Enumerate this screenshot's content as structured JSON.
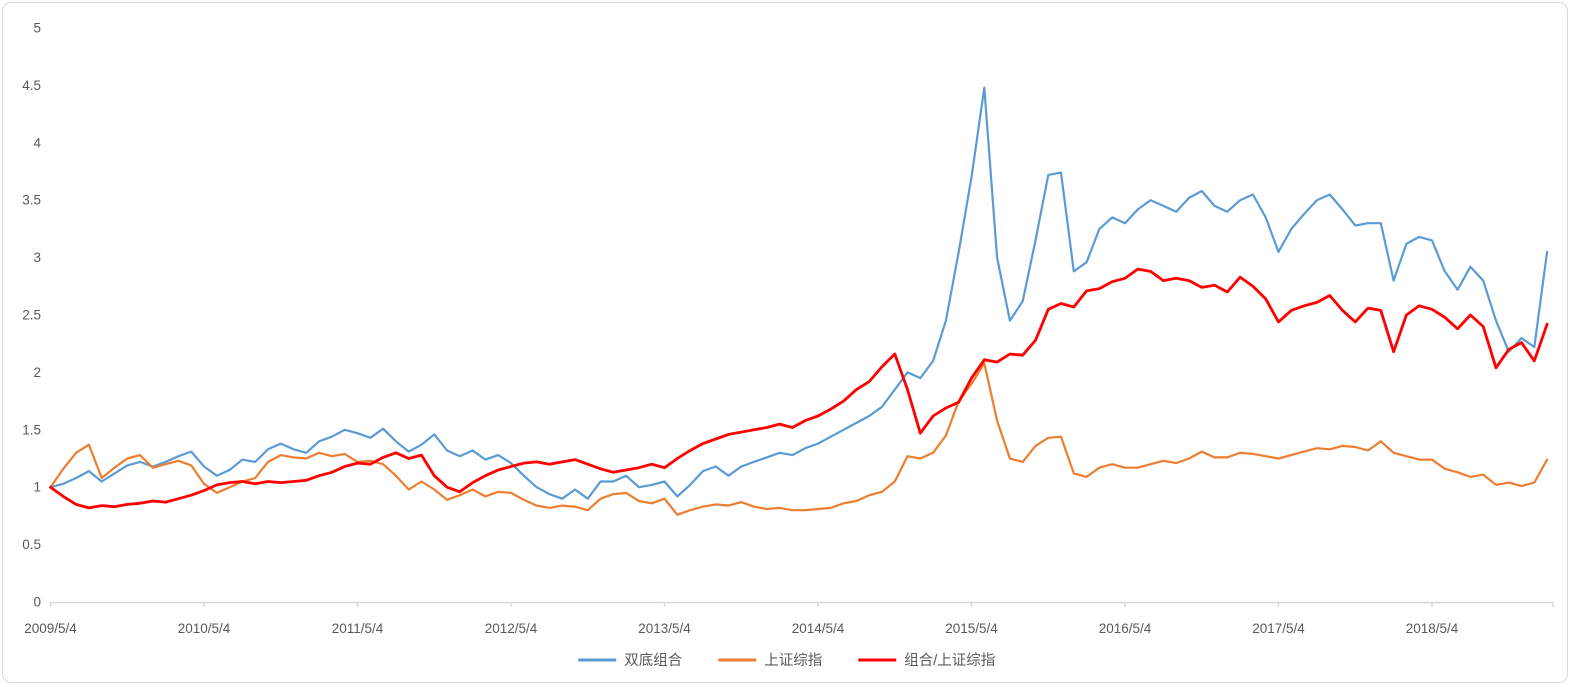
{
  "chart_data": {
    "type": "line",
    "title": "",
    "xlabel": "",
    "ylabel": "",
    "grid": false,
    "legend_position": "bottom-center",
    "ylim": [
      0,
      5
    ],
    "y_ticks": [
      0,
      0.5,
      1,
      1.5,
      2,
      2.5,
      3,
      3.5,
      4,
      4.5,
      5
    ],
    "x_unit": "month",
    "x_start": "2009/5/4",
    "x_tick_labels": [
      "2009/5/4",
      "2010/5/4",
      "2011/5/4",
      "2012/5/4",
      "2013/5/4",
      "2014/5/4",
      "2015/5/4",
      "2016/5/4",
      "2017/5/4",
      "2018/5/4"
    ],
    "series": [
      {
        "name": "双底组合",
        "color": "#5B9BD5",
        "line_width": 2.2,
        "values": [
          1.0,
          1.03,
          1.08,
          1.14,
          1.05,
          1.12,
          1.19,
          1.22,
          1.18,
          1.22,
          1.27,
          1.31,
          1.18,
          1.1,
          1.15,
          1.24,
          1.22,
          1.33,
          1.38,
          1.33,
          1.3,
          1.4,
          1.44,
          1.5,
          1.47,
          1.43,
          1.51,
          1.4,
          1.31,
          1.37,
          1.46,
          1.32,
          1.27,
          1.32,
          1.24,
          1.28,
          1.21,
          1.1,
          1.0,
          0.94,
          0.9,
          0.98,
          0.9,
          1.05,
          1.05,
          1.1,
          1.0,
          1.02,
          1.05,
          0.92,
          1.02,
          1.14,
          1.18,
          1.1,
          1.18,
          1.22,
          1.26,
          1.3,
          1.28,
          1.34,
          1.38,
          1.44,
          1.5,
          1.56,
          1.62,
          1.7,
          1.85,
          2.0,
          1.95,
          2.1,
          2.45,
          3.05,
          3.7,
          4.48,
          3.0,
          2.45,
          2.62,
          3.15,
          3.72,
          3.74,
          2.88,
          2.96,
          3.25,
          3.35,
          3.3,
          3.42,
          3.5,
          3.45,
          3.4,
          3.52,
          3.58,
          3.45,
          3.4,
          3.5,
          3.55,
          3.35,
          3.05,
          3.25,
          3.38,
          3.5,
          3.55,
          3.42,
          3.28,
          3.3,
          3.3,
          2.8,
          3.12,
          3.18,
          3.15,
          2.88,
          2.72,
          2.92,
          2.8,
          2.45,
          2.18,
          2.3,
          2.22,
          3.05
        ]
      },
      {
        "name": "上证综指",
        "color": "#ED7D31",
        "line_width": 2.2,
        "values": [
          1.0,
          1.16,
          1.3,
          1.37,
          1.08,
          1.17,
          1.25,
          1.28,
          1.17,
          1.2,
          1.23,
          1.19,
          1.03,
          0.95,
          1.0,
          1.05,
          1.08,
          1.22,
          1.28,
          1.26,
          1.25,
          1.3,
          1.27,
          1.29,
          1.22,
          1.23,
          1.2,
          1.1,
          0.98,
          1.05,
          0.98,
          0.89,
          0.93,
          0.98,
          0.92,
          0.96,
          0.95,
          0.89,
          0.84,
          0.82,
          0.84,
          0.83,
          0.8,
          0.9,
          0.94,
          0.95,
          0.88,
          0.86,
          0.9,
          0.76,
          0.8,
          0.83,
          0.85,
          0.84,
          0.87,
          0.83,
          0.81,
          0.82,
          0.8,
          0.8,
          0.81,
          0.82,
          0.86,
          0.88,
          0.93,
          0.96,
          1.05,
          1.27,
          1.25,
          1.3,
          1.45,
          1.75,
          1.9,
          2.08,
          1.58,
          1.25,
          1.22,
          1.36,
          1.43,
          1.44,
          1.12,
          1.09,
          1.17,
          1.2,
          1.17,
          1.17,
          1.2,
          1.23,
          1.21,
          1.25,
          1.31,
          1.26,
          1.26,
          1.3,
          1.29,
          1.27,
          1.25,
          1.28,
          1.31,
          1.34,
          1.33,
          1.36,
          1.35,
          1.32,
          1.4,
          1.3,
          1.27,
          1.24,
          1.24,
          1.16,
          1.13,
          1.09,
          1.11,
          1.02,
          1.04,
          1.01,
          1.04,
          1.24
        ]
      },
      {
        "name": "组合/上证综指",
        "color": "#FF0000",
        "line_width": 2.8,
        "values": [
          1.0,
          0.92,
          0.85,
          0.82,
          0.84,
          0.83,
          0.85,
          0.86,
          0.88,
          0.87,
          0.9,
          0.93,
          0.97,
          1.02,
          1.04,
          1.05,
          1.03,
          1.05,
          1.04,
          1.05,
          1.06,
          1.1,
          1.13,
          1.18,
          1.21,
          1.2,
          1.26,
          1.3,
          1.25,
          1.28,
          1.1,
          1.0,
          0.96,
          1.04,
          1.1,
          1.15,
          1.18,
          1.21,
          1.22,
          1.2,
          1.22,
          1.24,
          1.2,
          1.16,
          1.13,
          1.15,
          1.17,
          1.2,
          1.17,
          1.25,
          1.32,
          1.38,
          1.42,
          1.46,
          1.48,
          1.5,
          1.52,
          1.55,
          1.52,
          1.58,
          1.62,
          1.68,
          1.75,
          1.85,
          1.92,
          2.05,
          2.16,
          1.85,
          1.47,
          1.62,
          1.69,
          1.74,
          1.95,
          2.11,
          2.09,
          2.16,
          2.15,
          2.28,
          2.55,
          2.6,
          2.57,
          2.71,
          2.73,
          2.79,
          2.82,
          2.9,
          2.88,
          2.8,
          2.82,
          2.8,
          2.74,
          2.76,
          2.7,
          2.83,
          2.75,
          2.64,
          2.44,
          2.54,
          2.58,
          2.61,
          2.67,
          2.54,
          2.44,
          2.56,
          2.54,
          2.18,
          2.5,
          2.58,
          2.55,
          2.48,
          2.38,
          2.5,
          2.4,
          2.04,
          2.2,
          2.26,
          2.1,
          2.42
        ]
      }
    ]
  },
  "style_colors": {
    "axis_label": "#595959",
    "legend_text": "#595959",
    "axis_line": "#d9d9d9",
    "card_border": "#d8d8d8",
    "background": "#ffffff"
  }
}
